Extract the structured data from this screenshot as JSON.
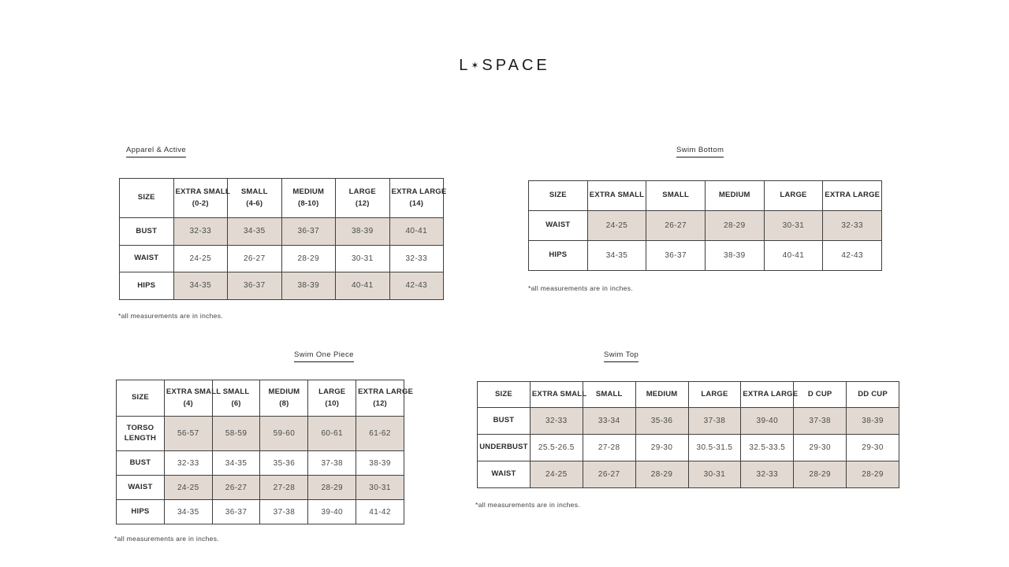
{
  "brand": {
    "logo_left": "L",
    "logo_star": "✶",
    "logo_right": "SPACE"
  },
  "colors": {
    "shaded_row": "#e2dad2",
    "table_border": "#3f3f3f",
    "text": "#2d2d2d"
  },
  "tables": [
    {
      "title": "Apparel & Active",
      "size_label": "SIZE",
      "columns": [
        {
          "label": "EXTRA SMALL",
          "sub": "(0-2)"
        },
        {
          "label": "SMALL",
          "sub": "(4-6)"
        },
        {
          "label": "MEDIUM",
          "sub": "(8-10)"
        },
        {
          "label": "LARGE",
          "sub": "(12)"
        },
        {
          "label": "EXTRA LARGE",
          "sub": "(14)"
        }
      ],
      "rows": [
        {
          "label": "BUST",
          "shaded": true,
          "values": [
            "32-33",
            "34-35",
            "36-37",
            "38-39",
            "40-41"
          ]
        },
        {
          "label": "WAIST",
          "shaded": false,
          "values": [
            "24-25",
            "26-27",
            "28-29",
            "30-31",
            "32-33"
          ]
        },
        {
          "label": "HIPS",
          "shaded": true,
          "values": [
            "34-35",
            "36-37",
            "38-39",
            "40-41",
            "42-43"
          ]
        }
      ],
      "footnote": "*all measurements are in inches."
    },
    {
      "title": "Swim Bottom",
      "size_label": "SIZE",
      "columns": [
        {
          "label": "EXTRA SMALL"
        },
        {
          "label": "SMALL"
        },
        {
          "label": "MEDIUM"
        },
        {
          "label": "LARGE"
        },
        {
          "label": "EXTRA LARGE"
        }
      ],
      "rows": [
        {
          "label": "WAIST",
          "shaded": true,
          "values": [
            "24-25",
            "26-27",
            "28-29",
            "30-31",
            "32-33"
          ]
        },
        {
          "label": "HIPS",
          "shaded": false,
          "values": [
            "34-35",
            "36-37",
            "38-39",
            "40-41",
            "42-43"
          ]
        }
      ],
      "footnote": "*all measurements are in inches."
    },
    {
      "title": "Swim One Piece",
      "size_label": "SIZE",
      "columns": [
        {
          "label": "EXTRA SMALL",
          "sub": "(4)"
        },
        {
          "label": "SMALL",
          "sub": "(6)"
        },
        {
          "label": "MEDIUM",
          "sub": "(8)"
        },
        {
          "label": "LARGE",
          "sub": "(10)"
        },
        {
          "label": "EXTRA LARGE",
          "sub": "(12)"
        }
      ],
      "rows": [
        {
          "label": "TORSO LENGTH",
          "shaded": true,
          "values": [
            "56-57",
            "58-59",
            "59-60",
            "60-61",
            "61-62"
          ]
        },
        {
          "label": "BUST",
          "shaded": false,
          "values": [
            "32-33",
            "34-35",
            "35-36",
            "37-38",
            "38-39"
          ]
        },
        {
          "label": "WAIST",
          "shaded": true,
          "values": [
            "24-25",
            "26-27",
            "27-28",
            "28-29",
            "30-31"
          ]
        },
        {
          "label": "HIPS",
          "shaded": false,
          "values": [
            "34-35",
            "36-37",
            "37-38",
            "39-40",
            "41-42"
          ]
        }
      ],
      "footnote": "*all measurements are in inches."
    },
    {
      "title": "Swim Top",
      "size_label": "SIZE",
      "columns": [
        {
          "label": "EXTRA SMALL"
        },
        {
          "label": "SMALL"
        },
        {
          "label": "MEDIUM"
        },
        {
          "label": "LARGE"
        },
        {
          "label": "EXTRA LARGE"
        },
        {
          "label": "D CUP"
        },
        {
          "label": "DD CUP"
        }
      ],
      "rows": [
        {
          "label": "BUST",
          "shaded": true,
          "values": [
            "32-33",
            "33-34",
            "35-36",
            "37-38",
            "39-40",
            "37-38",
            "38-39"
          ]
        },
        {
          "label": "UNDERBUST",
          "shaded": false,
          "values": [
            "25.5-26.5",
            "27-28",
            "29-30",
            "30.5-31.5",
            "32.5-33.5",
            "29-30",
            "29-30"
          ]
        },
        {
          "label": "WAIST",
          "shaded": true,
          "values": [
            "24-25",
            "26-27",
            "28-29",
            "30-31",
            "32-33",
            "28-29",
            "28-29"
          ]
        }
      ],
      "footnote": "*all measurements are in inches."
    }
  ]
}
